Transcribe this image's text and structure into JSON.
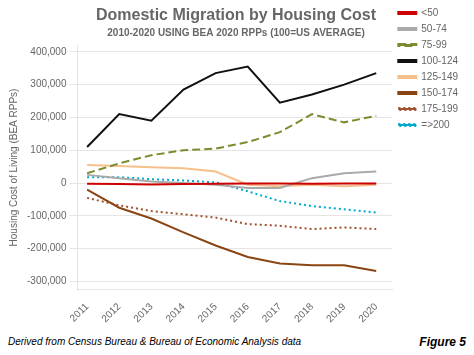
{
  "chart_data": {
    "type": "line",
    "title": "Domestic Migration by Housing Cost",
    "subtitle": "2010-2020 USING BEA 2020 RPPs (100=US AVERAGE)",
    "y_label": "Housing Cost of Living (BEA RPPs)",
    "annotations": [
      "Derived from Census Bureau & Bureau of Economic Analysis data",
      "Figure 5"
    ],
    "x": [
      2011,
      2012,
      2013,
      2014,
      2015,
      2016,
      2017,
      2018,
      2019,
      2020
    ],
    "series": [
      {
        "name": "<50",
        "color": "#cc0000",
        "line_style": "solid",
        "values": [
          -2000,
          -3000,
          -4000,
          -3000,
          -2000,
          -1000,
          -1000,
          -2000,
          -1000,
          -1000
        ]
      },
      {
        "name": "50-74",
        "color": "#aaaaaa",
        "line_style": "solid",
        "values": [
          25000,
          15000,
          5000,
          0,
          -5000,
          -15000,
          -15000,
          15000,
          30000,
          35000
        ]
      },
      {
        "name": "75-99",
        "color": "#7a8c2e",
        "line_style": "dashed",
        "values": [
          30000,
          60000,
          85000,
          100000,
          105000,
          125000,
          155000,
          210000,
          185000,
          205000
        ]
      },
      {
        "name": "100-124",
        "color": "#111111",
        "line_style": "solid",
        "values": [
          110000,
          210000,
          190000,
          285000,
          335000,
          355000,
          245000,
          270000,
          300000,
          335000
        ]
      },
      {
        "name": "125-149",
        "color": "#f5c08a",
        "line_style": "solid",
        "values": [
          55000,
          52000,
          48000,
          45000,
          35000,
          -5000,
          -10000,
          -5000,
          -10000,
          -5000
        ]
      },
      {
        "name": "150-174",
        "color": "#8B4513",
        "line_style": "solid",
        "values": [
          -20000,
          -75000,
          -108000,
          -150000,
          -190000,
          -225000,
          -245000,
          -250000,
          -250000,
          -268000
        ]
      },
      {
        "name": "175-199",
        "color": "#a0522d",
        "line_style": "dotted",
        "values": [
          -45000,
          -68000,
          -85000,
          -95000,
          -105000,
          -125000,
          -130000,
          -140000,
          -135000,
          -140000
        ]
      },
      {
        "name": "=>200",
        "color": "#00aacc",
        "line_style": "dotted",
        "values": [
          18000,
          18000,
          12000,
          8000,
          2000,
          -25000,
          -55000,
          -70000,
          -80000,
          -90000
        ]
      }
    ],
    "xlim": [
      2010.7,
      2020.5
    ],
    "xticks": [
      2011,
      2012,
      2013,
      2014,
      2015,
      2016,
      2017,
      2018,
      2019,
      2020
    ],
    "ylim": [
      -325000,
      420000
    ],
    "yticks": [
      {
        "value": -300000,
        "label": "-300,000"
      },
      {
        "value": -200000,
        "label": "-200,000"
      },
      {
        "value": -100000,
        "label": "-100,000"
      },
      0,
      {
        "value": 100000,
        "label": "100,000"
      },
      {
        "value": 200000,
        "label": "200,000"
      },
      {
        "value": 300000,
        "label": "300,000"
      },
      {
        "value": 400000,
        "label": "400,000"
      }
    ],
    "grid": "y",
    "legend": "upper right"
  }
}
